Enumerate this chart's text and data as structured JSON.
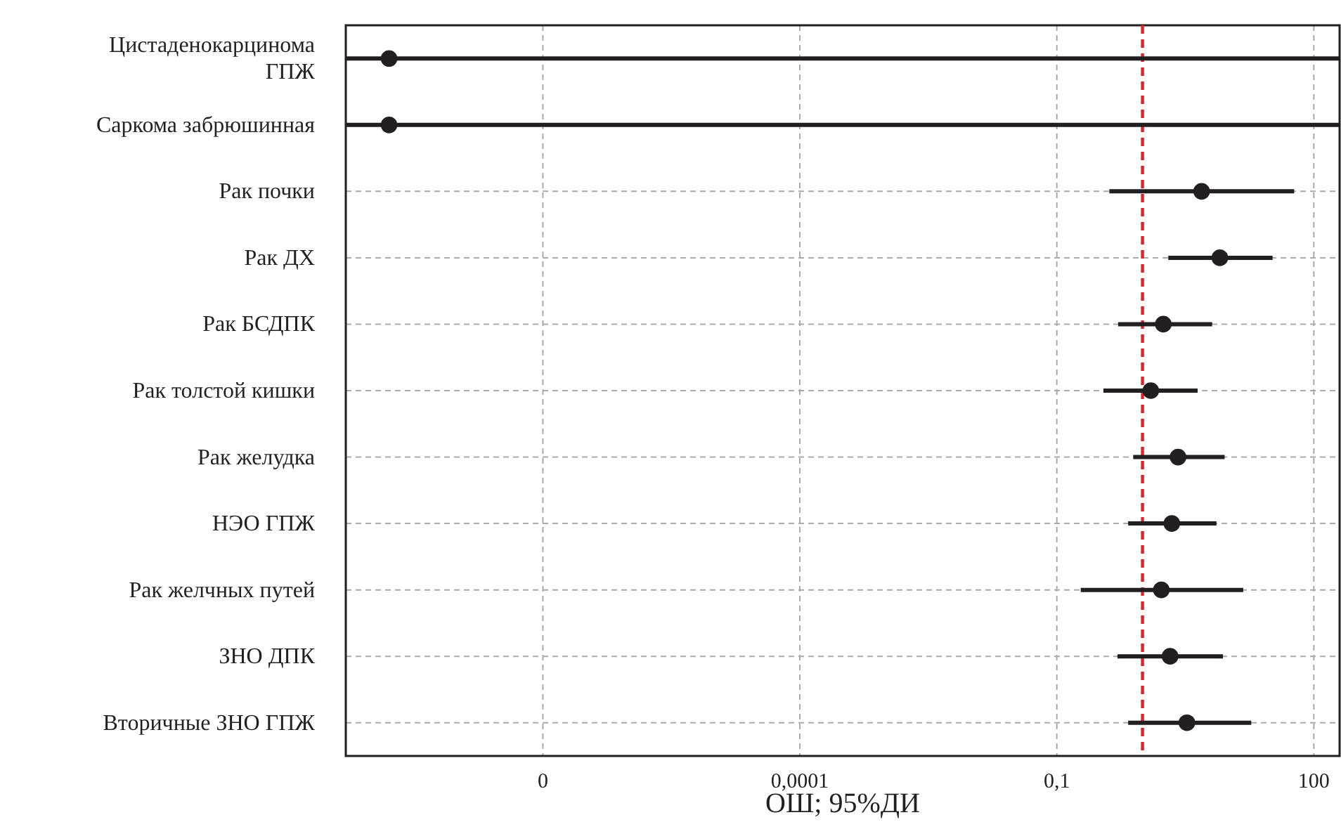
{
  "chart_data": {
    "type": "scatter",
    "orientation": "horizontal",
    "xlabel": "ОШ; 95%ДИ",
    "categories": [
      "Цистаденокарцинома\nГПЖ",
      "Саркома забрюшинная",
      "Рак почки",
      "Рак ДХ",
      "Рак БСДПК",
      "Рак толстой кишки",
      "Рак желудка",
      "НЭО ГПЖ",
      "Рак желчных путей",
      "ЗНО ДПК",
      "Вторичные ЗНО ГПЖ"
    ],
    "series": [
      {
        "color": "#231f20",
        "values": [
          1.6e-09,
          1.6e-09,
          4.9,
          8.0,
          1.75,
          1.25,
          2.6,
          2.2,
          1.66,
          2.1,
          3.3
        ],
        "errors": [
          [
            5e-10,
            200
          ],
          [
            5e-10,
            200
          ],
          [
            0.41,
            59
          ],
          [
            2.0,
            33
          ],
          [
            0.52,
            6.5
          ],
          [
            0.35,
            4.4
          ],
          [
            0.78,
            9.1
          ],
          [
            0.68,
            7.3
          ],
          [
            0.19,
            15
          ],
          [
            0.51,
            8.7
          ],
          [
            0.68,
            18.6
          ]
        ]
      }
    ],
    "log": "x",
    "xlim": [
      5e-10,
      200
    ],
    "xticks": [
      {
        "value": 1e-07,
        "label": "0"
      },
      {
        "value": 0.0001,
        "label": "0,0001"
      },
      {
        "value": 0.1,
        "label": "0,1"
      },
      100
    ],
    "grid": true,
    "marker": "circle",
    "ref_lines": [
      {
        "axis": "x",
        "value": 1,
        "color": "#e8202a",
        "line_style": "dashed"
      }
    ]
  }
}
